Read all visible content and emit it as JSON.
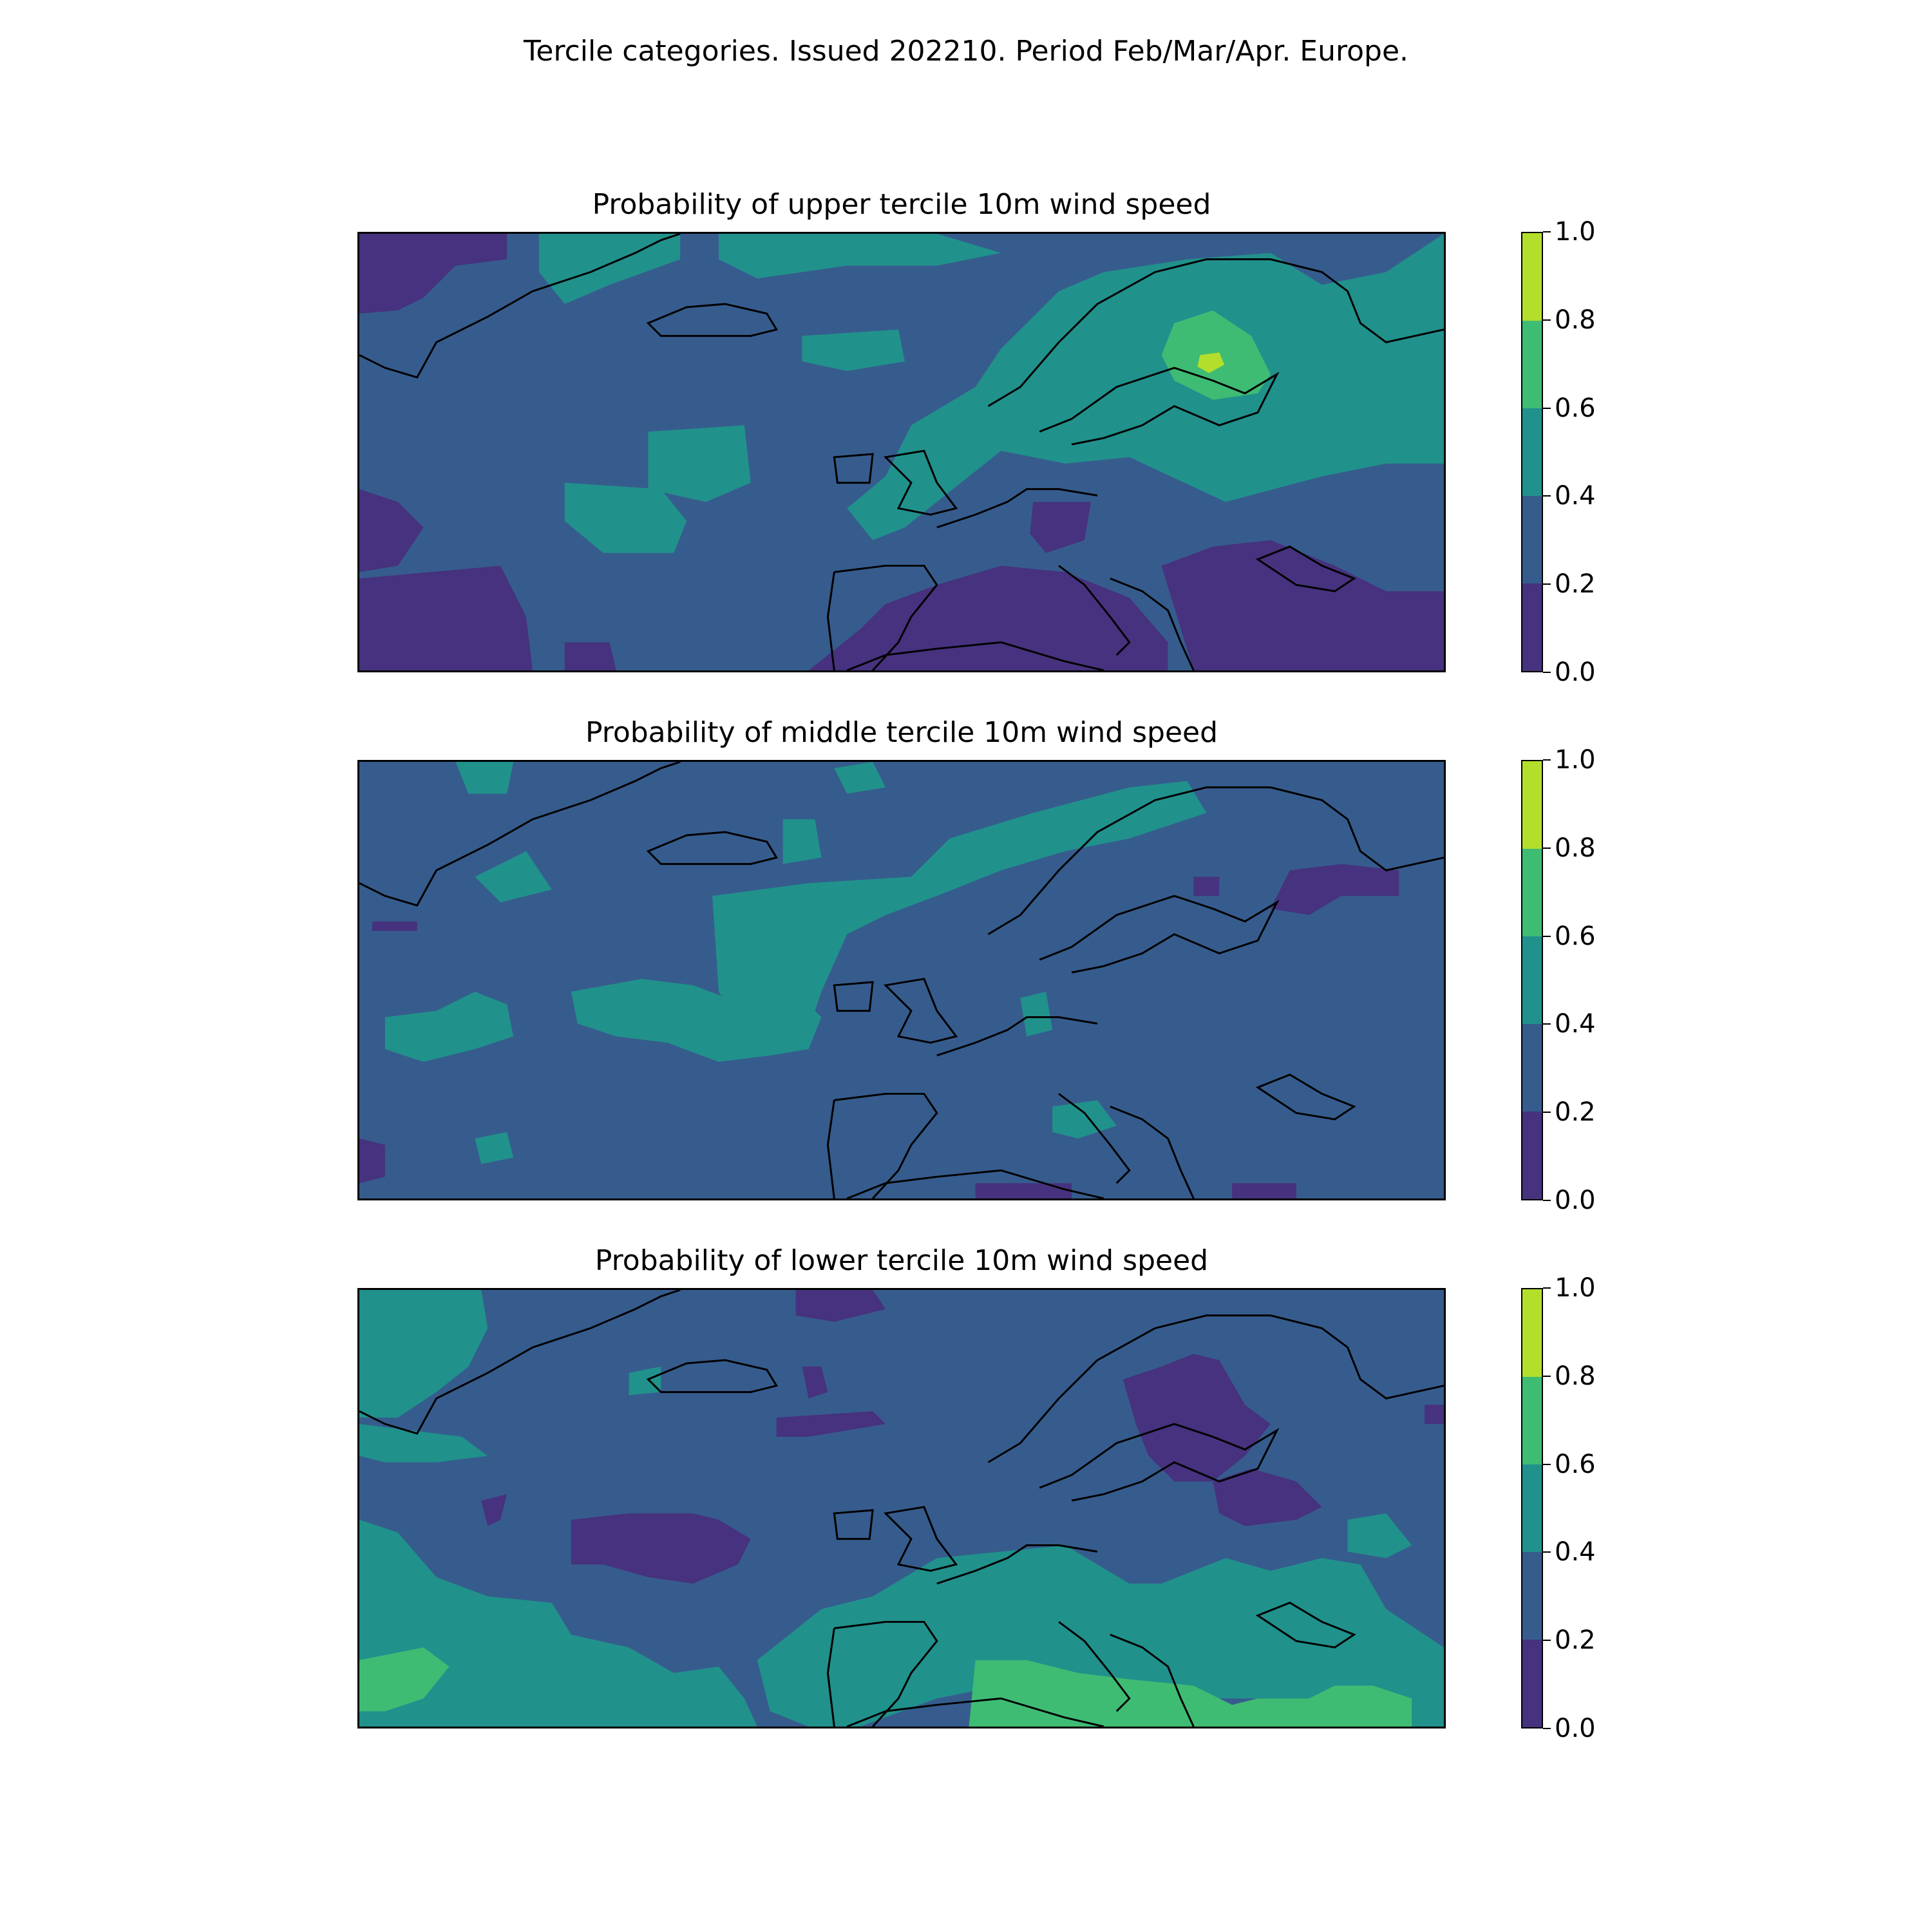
{
  "title": "Tercile categories. Issued 202210. Period Feb/Mar/Apr. Europe.",
  "colorbar": {
    "levels": [
      0.0,
      0.2,
      0.4,
      0.6,
      0.8,
      1.0
    ],
    "tick_labels": [
      "0.0",
      "0.2",
      "0.4",
      "0.6",
      "0.8",
      "1.0"
    ],
    "colors": [
      "#46327e",
      "#365c8d",
      "#21918c",
      "#3fbc73",
      "#b4de2c"
    ]
  },
  "map_style": {
    "coastline_color": "#000000"
  },
  "panels": [
    {
      "title": "Probability of upper tercile 10m wind speed",
      "background_class": "0.2-0.4",
      "dominant_features": [
        "0.6-0.8 and 0.8-1.0 maxima over Finland / Scandinavia",
        "0.0-0.2 over Mediterranean, eastern Europe, Black Sea and SW Atlantic",
        "0.4-0.6 over Scandinavia, North Sea, Greenland coast and mid-Atlantic"
      ]
    },
    {
      "title": "Probability of middle tercile 10m wind speed",
      "background_class": "0.2-0.4",
      "dominant_features": [
        "0.4-0.6 band across mid-Atlantic and Norway",
        "0.0-0.2 patches over western Russia"
      ]
    },
    {
      "title": "Probability of lower tercile 10m wind speed",
      "background_class": "0.2-0.4",
      "dominant_features": [
        "0.0-0.2 over Finland / Baltic and mid-Atlantic",
        "0.6-0.8 over North Africa / Libya and SW Atlantic",
        "0.4-0.6 over Greenland, Mediterranean and Black Sea"
      ]
    }
  ]
}
